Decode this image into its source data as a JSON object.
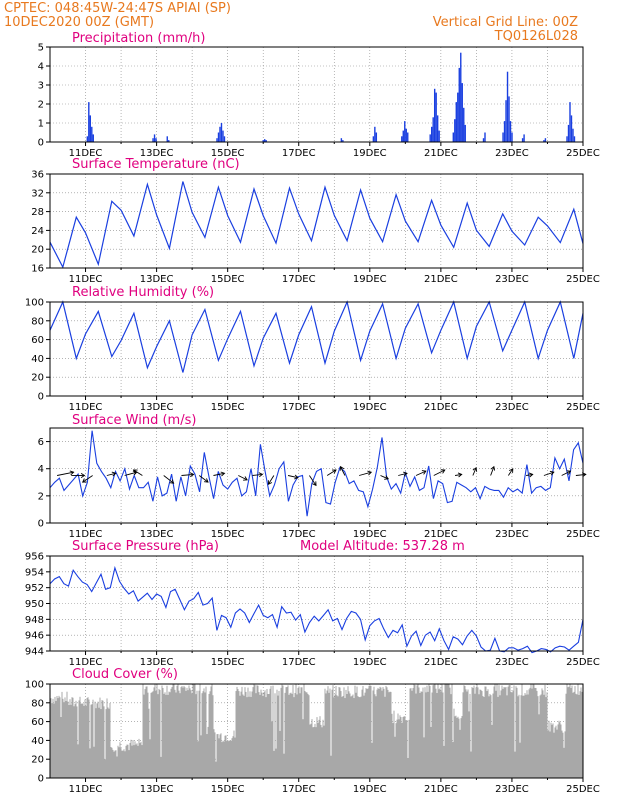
{
  "header": {
    "left_line1": "CPTEC:   048:45W-24:47S   APIAI (SP)",
    "left_line2": "10DEC2020 00Z (GMT)",
    "right_line1": "Vertical Grid Line: 00Z",
    "right_line2": "TQ0126L028"
  },
  "colors": {
    "header": "#e8791f",
    "title": "#e0007f",
    "line": "#1a3fe0",
    "bar": "#1a3fe0",
    "cloud": "#a8a8a8",
    "grid": "#888888"
  },
  "chart_data": [
    {
      "type": "bar",
      "title": "Precipitation (mm/h)",
      "x_ticks": [
        "11DEC",
        "13DEC",
        "15DEC",
        "17DEC",
        "19DEC",
        "21DEC",
        "23DEC",
        "25DEC"
      ],
      "y_ticks": [
        "0",
        "1",
        "2",
        "3",
        "4",
        "5"
      ],
      "ylim": [
        0,
        5
      ],
      "grid": true,
      "events": [
        {
          "day": 11.05,
          "values": [
            0.3,
            2.1,
            1.4,
            0.8,
            0.4
          ]
        },
        {
          "day": 12.9,
          "values": [
            0.2,
            0.4,
            0.2
          ]
        },
        {
          "day": 13.3,
          "values": [
            0.3,
            0.1
          ]
        },
        {
          "day": 14.7,
          "values": [
            0.2,
            0.5,
            0.8,
            1.0,
            0.6,
            0.3
          ]
        },
        {
          "day": 16.0,
          "values": [
            0.1,
            0.15,
            0.1
          ]
        },
        {
          "day": 18.2,
          "values": [
            0.2,
            0.1
          ]
        },
        {
          "day": 19.1,
          "values": [
            0.3,
            0.8,
            0.5
          ]
        },
        {
          "day": 19.9,
          "values": [
            0.3,
            0.6,
            1.1,
            0.7,
            0.5
          ]
        },
        {
          "day": 20.7,
          "values": [
            0.4,
            0.8,
            1.3,
            2.8,
            2.6,
            1.4,
            0.6
          ]
        },
        {
          "day": 21.35,
          "values": [
            0.5,
            1.2,
            2.1,
            2.6,
            3.9,
            4.7,
            3.1,
            1.8,
            0.9
          ]
        },
        {
          "day": 22.2,
          "values": [
            0.2,
            0.5
          ]
        },
        {
          "day": 22.75,
          "values": [
            0.5,
            1.1,
            2.2,
            3.7,
            2.4,
            1.1,
            0.5
          ]
        },
        {
          "day": 23.3,
          "values": [
            0.2,
            0.4
          ]
        },
        {
          "day": 23.9,
          "values": [
            0.1,
            0.2
          ]
        },
        {
          "day": 24.55,
          "values": [
            0.3,
            0.9,
            2.1,
            1.4,
            0.7,
            0.3
          ]
        }
      ]
    },
    {
      "type": "line",
      "title": "Surface Temperature (nC)",
      "x_ticks": [
        "11DEC",
        "13DEC",
        "15DEC",
        "17DEC",
        "19DEC",
        "21DEC",
        "23DEC",
        "25DEC"
      ],
      "y_ticks": [
        "16",
        "20",
        "24",
        "28",
        "32",
        "36"
      ],
      "ylim": [
        16,
        36
      ],
      "grid": true,
      "daily_max": [
        26.8,
        30.2,
        33.8,
        34.4,
        33.2,
        32.8,
        33.0,
        33.2,
        32.6,
        31.6,
        30.4,
        29.8,
        27.5,
        26.8,
        28.5
      ],
      "daily_min": [
        16.2,
        16.8,
        22.8,
        20.2,
        22.5,
        21.5,
        21.3,
        21.8,
        21.8,
        21.6,
        21.6,
        20.4,
        20.6,
        20.9,
        21.4
      ],
      "end_value": 21.2
    },
    {
      "type": "line",
      "title": "Relative Humidity (%)",
      "x_ticks": [
        "11DEC",
        "13DEC",
        "15DEC",
        "17DEC",
        "19DEC",
        "21DEC",
        "23DEC",
        "25DEC"
      ],
      "y_ticks": [
        "0",
        "20",
        "40",
        "60",
        "80",
        "100"
      ],
      "ylim": [
        0,
        100
      ],
      "grid": true,
      "daily_max": [
        100,
        90,
        88,
        80,
        92,
        90,
        88,
        95,
        100,
        98,
        98,
        100,
        100,
        100,
        100
      ],
      "daily_min": [
        40,
        42,
        30,
        25,
        38,
        32,
        35,
        35,
        38,
        40,
        46,
        40,
        48,
        40,
        40
      ],
      "end_value": 88
    },
    {
      "type": "line",
      "title": "Surface Wind (m/s)",
      "x_ticks": [
        "11DEC",
        "13DEC",
        "15DEC",
        "17DEC",
        "19DEC",
        "21DEC",
        "23DEC",
        "25DEC"
      ],
      "y_ticks": [
        "0",
        "2",
        "4",
        "6"
      ],
      "ylim": [
        0,
        7
      ],
      "grid": true,
      "values": [
        2.6,
        3.0,
        3.3,
        2.4,
        2.8,
        3.2,
        3.6,
        2.0,
        3.0,
        6.8,
        4.4,
        3.8,
        3.3,
        2.6,
        3.8,
        3.1,
        4.0,
        2.5,
        3.5,
        2.6,
        2.6,
        3.0,
        1.6,
        3.4,
        2.0,
        2.2,
        3.6,
        1.6,
        3.4,
        2.0,
        4.2,
        3.6,
        2.3,
        5.2,
        3.4,
        1.8,
        3.8,
        2.8,
        2.5,
        3.0,
        3.3,
        2.0,
        2.3,
        4.0,
        2.0,
        5.8,
        3.8,
        2.0,
        2.8,
        4.0,
        4.5,
        1.6,
        2.8,
        3.4,
        3.5,
        0.5,
        2.9,
        3.8,
        4.0,
        1.5,
        1.4,
        3.0,
        4.1,
        3.8,
        2.9,
        3.1,
        2.4,
        2.3,
        1.2,
        2.5,
        4.1,
        6.3,
        3.4,
        2.5,
        2.9,
        2.2,
        3.7,
        2.7,
        3.4,
        2.4,
        2.6,
        4.2,
        1.8,
        3.1,
        2.9,
        1.5,
        1.6,
        3.0,
        2.8,
        2.6,
        2.3,
        2.6,
        1.8,
        2.7,
        2.5,
        2.4,
        2.4,
        1.9,
        2.6,
        2.3,
        2.5,
        2.2,
        4.3,
        2.2,
        2.6,
        2.7,
        2.4,
        2.6,
        4.8,
        4.0,
        4.7,
        3.1,
        5.4,
        5.9,
        4.4
      ],
      "vectors": [
        {
          "day": 10.2,
          "u": 3.0,
          "v": 0.6
        },
        {
          "day": 10.6,
          "u": 2.4,
          "v": 0.0
        },
        {
          "day": 11.2,
          "u": -1.8,
          "v": -1.2
        },
        {
          "day": 11.6,
          "u": 1.6,
          "v": 0.4
        },
        {
          "day": 12.1,
          "u": 2.2,
          "v": 0.6
        },
        {
          "day": 12.6,
          "u": -1.6,
          "v": 1.0
        },
        {
          "day": 13.2,
          "u": 1.8,
          "v": -1.4
        },
        {
          "day": 13.7,
          "u": 2.2,
          "v": 0.2
        },
        {
          "day": 14.2,
          "u": 1.6,
          "v": -1.2
        },
        {
          "day": 14.6,
          "u": 2.0,
          "v": 0.4
        },
        {
          "day": 15.3,
          "u": 1.6,
          "v": -0.8
        },
        {
          "day": 15.7,
          "u": 1.8,
          "v": 0.2
        },
        {
          "day": 16.3,
          "u": -1.0,
          "v": -1.6
        },
        {
          "day": 16.7,
          "u": 1.8,
          "v": -0.4
        },
        {
          "day": 17.3,
          "u": 1.2,
          "v": -1.8
        },
        {
          "day": 17.8,
          "u": 1.6,
          "v": 1.0
        },
        {
          "day": 18.3,
          "u": -0.8,
          "v": 1.6
        },
        {
          "day": 18.7,
          "u": 2.2,
          "v": 0.6
        },
        {
          "day": 19.3,
          "u": 1.4,
          "v": -0.6
        },
        {
          "day": 19.8,
          "u": 1.6,
          "v": 0.4
        },
        {
          "day": 20.3,
          "u": 1.8,
          "v": 0.8
        },
        {
          "day": 20.8,
          "u": 2.0,
          "v": 1.0
        },
        {
          "day": 21.4,
          "u": 1.2,
          "v": 0.2
        },
        {
          "day": 21.9,
          "u": 0.6,
          "v": 1.4
        },
        {
          "day": 22.4,
          "u": 0.6,
          "v": 1.6
        },
        {
          "day": 22.9,
          "u": 0.8,
          "v": 1.2
        },
        {
          "day": 23.4,
          "u": 1.2,
          "v": 0.2
        },
        {
          "day": 23.9,
          "u": 1.8,
          "v": 0.6
        },
        {
          "day": 24.4,
          "u": 1.6,
          "v": 0.8
        },
        {
          "day": 24.8,
          "u": 1.8,
          "v": 0.2
        }
      ]
    },
    {
      "type": "line",
      "title": "Surface Pressure (hPa)",
      "annotation": "Model Altitude: 537.28 m",
      "x_ticks": [
        "11DEC",
        "13DEC",
        "15DEC",
        "17DEC",
        "19DEC",
        "21DEC",
        "23DEC",
        "25DEC"
      ],
      "y_ticks": [
        "944",
        "946",
        "948",
        "950",
        "952",
        "954",
        "956"
      ],
      "ylim": [
        944,
        956
      ],
      "grid": true,
      "values": [
        952.5,
        953.1,
        953.4,
        952.5,
        952.2,
        954.2,
        953.4,
        952.7,
        952.4,
        951.5,
        952.6,
        953.7,
        951.8,
        952.0,
        954.5,
        952.8,
        951.9,
        951.2,
        951.6,
        950.3,
        950.8,
        951.3,
        950.5,
        951.2,
        950.9,
        949.5,
        951.5,
        951.8,
        950.5,
        949.2,
        950.3,
        950.6,
        951.4,
        949.8,
        950.0,
        950.7,
        946.6,
        948.5,
        948.2,
        947.0,
        948.8,
        949.3,
        948.8,
        947.6,
        948.7,
        949.8,
        948.5,
        948.2,
        948.6,
        947.0,
        949.6,
        948.8,
        948.9,
        947.9,
        948.6,
        946.4,
        947.6,
        948.4,
        947.8,
        948.5,
        949.2,
        947.8,
        948.1,
        946.7,
        948.1,
        949.0,
        948.8,
        948.0,
        945.4,
        947.2,
        947.8,
        948.1,
        946.8,
        945.7,
        946.6,
        946.3,
        947.3,
        944.6,
        945.9,
        946.5,
        944.7,
        946.0,
        946.4,
        945.3,
        946.8,
        945.3,
        944.2,
        945.8,
        945.5,
        944.8,
        945.9,
        946.6,
        945.9,
        944.5,
        944.0,
        944.1,
        945.6,
        944.0,
        943.9,
        944.4,
        944.4,
        944.1,
        944.3,
        944.6,
        943.8,
        944.0,
        944.3,
        944.2,
        943.9,
        944.4,
        944.6,
        944.5,
        944.1,
        944.6,
        945.1,
        948.0
      ]
    },
    {
      "type": "area",
      "title": "Cloud Cover (%)",
      "x_ticks": [
        "11DEC",
        "13DEC",
        "15DEC",
        "17DEC",
        "19DEC",
        "21DEC",
        "23DEC",
        "25DEC"
      ],
      "y_ticks": [
        "0",
        "20",
        "40",
        "60",
        "80",
        "100"
      ],
      "ylim": [
        0,
        100
      ],
      "grid": true,
      "segments": [
        {
          "from": 10.0,
          "to": 10.5,
          "level": 85
        },
        {
          "from": 10.5,
          "to": 11.7,
          "level": 80
        },
        {
          "from": 11.7,
          "to": 12.6,
          "level": 35
        },
        {
          "from": 12.6,
          "to": 14.6,
          "level": 95
        },
        {
          "from": 14.6,
          "to": 15.2,
          "level": 45
        },
        {
          "from": 15.2,
          "to": 17.3,
          "level": 93
        },
        {
          "from": 17.3,
          "to": 17.7,
          "level": 60
        },
        {
          "from": 17.7,
          "to": 19.6,
          "level": 92
        },
        {
          "from": 19.6,
          "to": 20.1,
          "level": 65
        },
        {
          "from": 20.1,
          "to": 21.3,
          "level": 96
        },
        {
          "from": 21.3,
          "to": 21.6,
          "level": 70
        },
        {
          "from": 21.6,
          "to": 24.0,
          "level": 93
        },
        {
          "from": 24.0,
          "to": 24.5,
          "level": 55
        },
        {
          "from": 24.5,
          "to": 25.0,
          "level": 95
        }
      ]
    }
  ]
}
